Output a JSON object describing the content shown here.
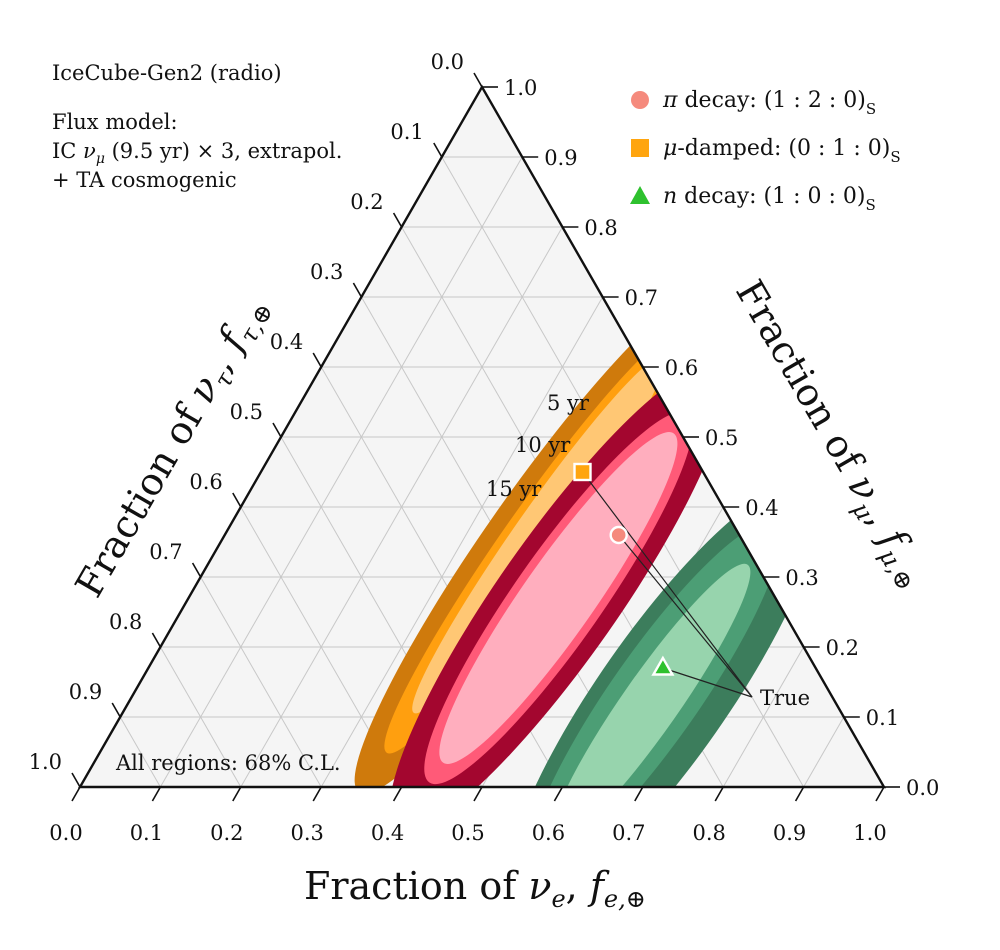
{
  "chart_data": {
    "type": "ternary-contour",
    "experiment": "IceCube-Gen2 (radio)",
    "flux_model_title": "Flux model:",
    "flux_model_line1_prefix": "IC ",
    "flux_model_line1_nu": "ν",
    "flux_model_line1_sub": "μ",
    "flux_model_line1_suffix": " (9.5 yr) × 3, extrapol.",
    "flux_model_line2": "+ TA cosmogenic",
    "cl_note": "All regions: 68% C.L.",
    "axes": {
      "bottom": {
        "prefix": "Fraction of ",
        "nu": "ν",
        "sub": "e",
        "f": "f",
        "fsub": "e,⊕"
      },
      "right": {
        "prefix": "Fraction of ",
        "nu": "ν",
        "sub": "μ",
        "f": "f",
        "fsub": "μ,⊕"
      },
      "left": {
        "prefix": "Fraction of ",
        "nu": "ν",
        "sub": "τ",
        "f": "f",
        "fsub": "τ,⊕"
      }
    },
    "ticks": [
      "0.0",
      "0.1",
      "0.2",
      "0.3",
      "0.4",
      "0.5",
      "0.6",
      "0.7",
      "0.8",
      "0.9",
      "1.0"
    ],
    "exposure_labels": [
      "5 yr",
      "10 yr",
      "15 yr"
    ],
    "true_label": "True",
    "colors": {
      "pi": [
        "#a3062f",
        "#ff5a78",
        "#ffaebe"
      ],
      "mu": [
        "#cf7a0c",
        "#ff9f0f",
        "#ffc774"
      ],
      "n": [
        "#3c7d5c",
        "#4c9e75",
        "#97d4ad"
      ]
    },
    "legend": [
      {
        "symbol": "circle",
        "color": "#f58a7d",
        "pre": "π decay: ",
        "ratio": "(1 : 2 : 0)",
        "sub": "S"
      },
      {
        "symbol": "square",
        "color": "#ffa50f",
        "pre": "μ-damped: ",
        "ratio": "(0 : 1 : 0)",
        "sub": "S"
      },
      {
        "symbol": "triangle",
        "color": "#2ec12e",
        "pre": "n decay: ",
        "ratio": "(1 : 0 : 0)",
        "sub": "S"
      }
    ],
    "true_points": [
      {
        "source": "pi decay",
        "fe": 0.49,
        "fmu": 0.36
      },
      {
        "source": "mu-damped",
        "fe": 0.4,
        "fmu": 0.45
      },
      {
        "source": "n decay",
        "fe": 0.64,
        "fmu": 0.17
      }
    ],
    "regions": [
      {
        "source": "mu-damped",
        "exposure": "5 yr",
        "center_fe": 0.39,
        "center_fmu": 0.35,
        "span_major": 0.76,
        "span_minor": 0.12
      },
      {
        "source": "mu-damped",
        "exposure": "10 yr",
        "center_fe": 0.39,
        "center_fmu": 0.35,
        "span_major": 0.64,
        "span_minor": 0.08
      },
      {
        "source": "mu-damped",
        "exposure": "15 yr",
        "center_fe": 0.39,
        "center_fmu": 0.36,
        "span_major": 0.54,
        "span_minor": 0.06
      },
      {
        "source": "pi decay",
        "exposure": "5 yr",
        "center_fe": 0.46,
        "center_fmu": 0.27,
        "span_major": 0.7,
        "span_minor": 0.15
      },
      {
        "source": "pi decay",
        "exposure": "10 yr",
        "center_fe": 0.46,
        "center_fmu": 0.27,
        "span_major": 0.56,
        "span_minor": 0.11
      },
      {
        "source": "pi decay",
        "exposure": "15 yr",
        "center_fe": 0.46,
        "center_fmu": 0.27,
        "span_major": 0.5,
        "span_minor": 0.09
      },
      {
        "source": "n decay",
        "exposure": "5 yr",
        "center_fe": 0.66,
        "center_fmu": 0.13,
        "span_major": 0.64,
        "span_minor": 0.16
      },
      {
        "source": "n decay",
        "exposure": "10 yr",
        "center_fe": 0.65,
        "center_fmu": 0.13,
        "span_major": 0.52,
        "span_minor": 0.11
      },
      {
        "source": "n decay",
        "exposure": "15 yr",
        "center_fe": 0.65,
        "center_fmu": 0.12,
        "span_major": 0.42,
        "span_minor": 0.07
      }
    ]
  }
}
